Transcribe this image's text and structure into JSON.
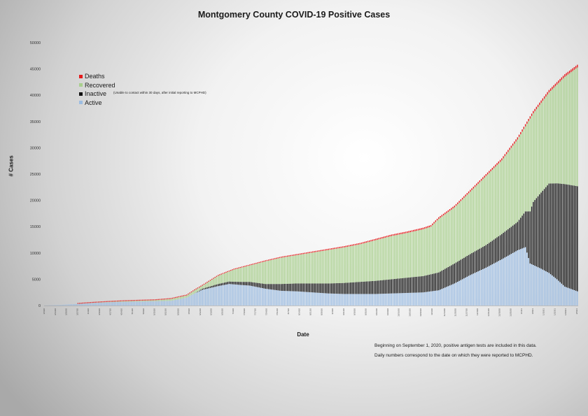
{
  "chart_data": {
    "type": "bar",
    "stacked": true,
    "title": "Montgomery County COVID-19 Positive Cases",
    "xlabel": "Date",
    "ylabel": "# Cases",
    "ylim": [
      0,
      50000
    ],
    "yticks": [
      0,
      5000,
      10000,
      15000,
      20000,
      25000,
      30000,
      35000,
      40000,
      45000,
      50000
    ],
    "grid": false,
    "legend_position": "top-left",
    "series_order": [
      "Active",
      "Inactive",
      "Recovered",
      "Deaths"
    ],
    "series": [
      {
        "name": "Deaths",
        "color": "#e41a1c"
      },
      {
        "name": "Recovered",
        "color": "#a9cf8e"
      },
      {
        "name": "Inactive",
        "color": "#111111",
        "note": "(Unable to contact within 30 days, after initial reporting to MCPHD)"
      },
      {
        "name": "Active",
        "color": "#9dbde2"
      }
    ],
    "control_points": {
      "total": [
        [
          0,
          20
        ],
        [
          10,
          120
        ],
        [
          20,
          300
        ],
        [
          30,
          520
        ],
        [
          40,
          700
        ],
        [
          50,
          850
        ],
        [
          60,
          950
        ],
        [
          70,
          1050
        ],
        [
          80,
          1300
        ],
        [
          90,
          2000
        ],
        [
          95,
          3000
        ],
        [
          100,
          3900
        ],
        [
          110,
          5800
        ],
        [
          120,
          7000
        ],
        [
          130,
          7800
        ],
        [
          140,
          8600
        ],
        [
          150,
          9300
        ],
        [
          160,
          9800
        ],
        [
          170,
          10300
        ],
        [
          180,
          10800
        ],
        [
          190,
          11300
        ],
        [
          200,
          11900
        ],
        [
          210,
          12700
        ],
        [
          220,
          13500
        ],
        [
          230,
          14100
        ],
        [
          240,
          14800
        ],
        [
          245,
          15300
        ],
        [
          250,
          16800
        ],
        [
          260,
          19000
        ],
        [
          270,
          22000
        ],
        [
          280,
          25000
        ],
        [
          290,
          28000
        ],
        [
          300,
          32000
        ],
        [
          310,
          37000
        ],
        [
          320,
          41000
        ],
        [
          330,
          44000
        ],
        [
          338,
          45800
        ]
      ],
      "active": [
        [
          0,
          20
        ],
        [
          10,
          120
        ],
        [
          20,
          300
        ],
        [
          30,
          480
        ],
        [
          40,
          620
        ],
        [
          50,
          700
        ],
        [
          60,
          760
        ],
        [
          70,
          830
        ],
        [
          80,
          900
        ],
        [
          90,
          1500
        ],
        [
          95,
          2300
        ],
        [
          100,
          3000
        ],
        [
          110,
          3700
        ],
        [
          117,
          4100
        ],
        [
          125,
          3900
        ],
        [
          130,
          3800
        ],
        [
          140,
          3200
        ],
        [
          150,
          2800
        ],
        [
          160,
          2700
        ],
        [
          170,
          2500
        ],
        [
          180,
          2300
        ],
        [
          190,
          2200
        ],
        [
          200,
          2200
        ],
        [
          210,
          2200
        ],
        [
          220,
          2300
        ],
        [
          230,
          2400
        ],
        [
          240,
          2500
        ],
        [
          250,
          2900
        ],
        [
          260,
          4200
        ],
        [
          270,
          5800
        ],
        [
          280,
          7200
        ],
        [
          290,
          8800
        ],
        [
          300,
          10500
        ],
        [
          305,
          11100
        ],
        [
          308,
          8000
        ],
        [
          315,
          7000
        ],
        [
          320,
          6200
        ],
        [
          325,
          5000
        ],
        [
          330,
          3600
        ],
        [
          338,
          2700
        ]
      ],
      "inactive": [
        [
          0,
          0
        ],
        [
          60,
          0
        ],
        [
          80,
          0
        ],
        [
          95,
          0
        ],
        [
          100,
          200
        ],
        [
          110,
          400
        ],
        [
          120,
          500
        ],
        [
          130,
          700
        ],
        [
          140,
          900
        ],
        [
          150,
          1300
        ],
        [
          160,
          1500
        ],
        [
          170,
          1700
        ],
        [
          180,
          1900
        ],
        [
          190,
          2100
        ],
        [
          200,
          2300
        ],
        [
          210,
          2500
        ],
        [
          220,
          2700
        ],
        [
          230,
          2900
        ],
        [
          240,
          3100
        ],
        [
          250,
          3400
        ],
        [
          260,
          3800
        ],
        [
          270,
          4000
        ],
        [
          280,
          4300
        ],
        [
          290,
          4800
        ],
        [
          300,
          5400
        ],
        [
          305,
          6800
        ],
        [
          310,
          12000
        ],
        [
          320,
          17000
        ],
        [
          330,
          19500
        ],
        [
          338,
          20000
        ]
      ],
      "deaths": [
        [
          0,
          0
        ],
        [
          20,
          5
        ],
        [
          40,
          15
        ],
        [
          60,
          30
        ],
        [
          80,
          50
        ],
        [
          100,
          120
        ],
        [
          120,
          160
        ],
        [
          140,
          190
        ],
        [
          160,
          210
        ],
        [
          180,
          230
        ],
        [
          200,
          250
        ],
        [
          220,
          280
        ],
        [
          240,
          300
        ],
        [
          260,
          330
        ],
        [
          280,
          370
        ],
        [
          300,
          420
        ],
        [
          320,
          480
        ],
        [
          338,
          520
        ]
      ]
    },
    "num_bars": 339,
    "date_labels": [
      "3/6/20",
      "3/13/20",
      "3/20/20",
      "3/27/20",
      "4/3/20",
      "4/10/20",
      "4/17/20",
      "4/24/20",
      "5/1/20",
      "5/8/20",
      "5/15/20",
      "5/22/20",
      "5/29/20",
      "6/5/20",
      "6/12/20",
      "6/19/20",
      "6/26/20",
      "7/3/20",
      "7/10/20",
      "7/17/20",
      "7/24/20",
      "7/31/20",
      "8/7/20",
      "8/14/20",
      "8/21/20",
      "8/28/20",
      "9/4/20",
      "9/11/20",
      "9/18/20",
      "9/25/20",
      "10/2/20",
      "10/9/20",
      "10/16/20",
      "10/23/20",
      "10/30/20",
      "11/6/20",
      "11/13/20",
      "11/20/20",
      "11/27/20",
      "12/4/20",
      "12/11/20",
      "12/18/20",
      "12/25/20",
      "1/1/21",
      "1/8/21",
      "1/15/21",
      "1/22/21",
      "1/29/21",
      "2/5/21"
    ],
    "notes": [
      "Beginning on September 1, 2020, positive antigen tests are included in this data.",
      "Daily numbers correspond to the date on which they were reported to MCPHD."
    ]
  }
}
